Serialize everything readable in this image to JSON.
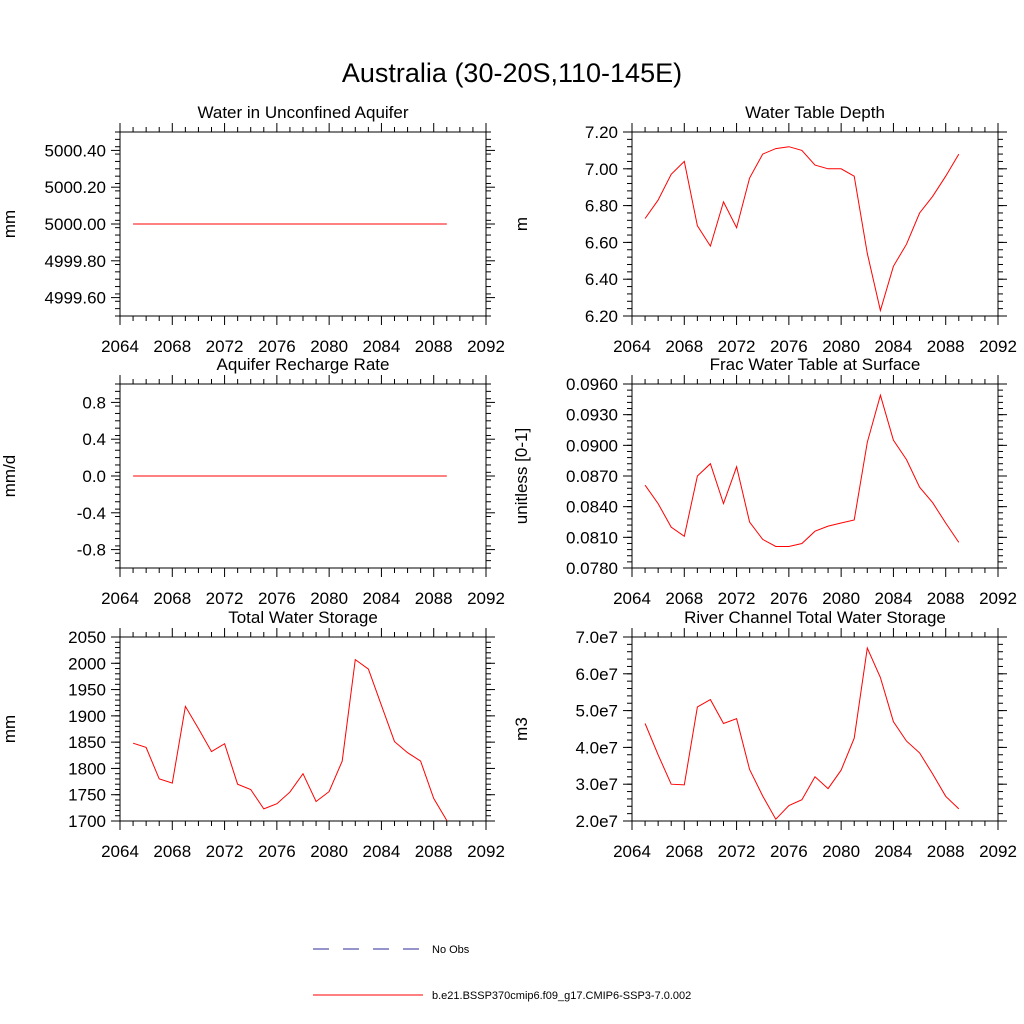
{
  "figure": {
    "title": "Australia (30-20S,110-145E)"
  },
  "legend": {
    "placement": "bottom-center",
    "entries": [
      {
        "label": "No Obs",
        "style": "dashed",
        "color": "#2b2b9a"
      },
      {
        "label": "b.e21.BSSP370cmip6.f09_g17.CMIP6-SSP3-7.0.002",
        "style": "solid",
        "color": "#ff0000"
      }
    ]
  },
  "chart_data": [
    {
      "type": "line",
      "title": "Water in Unconfined Aquifer",
      "ylabel": "mm",
      "xlim": [
        2064,
        2092
      ],
      "xticks": [
        "2064",
        "2068",
        "2072",
        "2076",
        "2080",
        "2084",
        "2088",
        "2092"
      ],
      "ylim": [
        4999.5,
        5000.5
      ],
      "yticks": [
        "4999.60",
        "4999.80",
        "5000.00",
        "5000.20",
        "5000.40"
      ],
      "series": [
        {
          "color": "#ff0000",
          "x": [
            2065,
            2066,
            2067,
            2068,
            2069,
            2070,
            2071,
            2072,
            2073,
            2074,
            2075,
            2076,
            2077,
            2078,
            2079,
            2080,
            2081,
            2082,
            2083,
            2084,
            2085,
            2086,
            2087,
            2088,
            2089
          ],
          "y": [
            5000,
            5000,
            5000,
            5000,
            5000,
            5000,
            5000,
            5000,
            5000,
            5000,
            5000,
            5000,
            5000,
            5000,
            5000,
            5000,
            5000,
            5000,
            5000,
            5000,
            5000,
            5000,
            5000,
            5000,
            5000
          ]
        }
      ]
    },
    {
      "type": "line",
      "title": "Water Table Depth",
      "ylabel": "m",
      "xlim": [
        2064,
        2092
      ],
      "xticks": [
        "2064",
        "2068",
        "2072",
        "2076",
        "2080",
        "2084",
        "2088",
        "2092"
      ],
      "ylim": [
        6.2,
        7.2
      ],
      "yticks": [
        "6.20",
        "6.40",
        "6.60",
        "6.80",
        "7.00",
        "7.20"
      ],
      "series": [
        {
          "color": "#ff0000",
          "x": [
            2065,
            2066,
            2067,
            2068,
            2069,
            2070,
            2071,
            2072,
            2073,
            2074,
            2075,
            2076,
            2077,
            2078,
            2079,
            2080,
            2081,
            2082,
            2083,
            2084,
            2085,
            2086,
            2087,
            2088,
            2089
          ],
          "y": [
            6.73,
            6.83,
            6.97,
            7.04,
            6.69,
            6.58,
            6.82,
            6.68,
            6.95,
            7.08,
            7.11,
            7.12,
            7.1,
            7.02,
            7.0,
            7.0,
            6.96,
            6.54,
            6.23,
            6.47,
            6.59,
            6.76,
            6.85,
            6.96,
            7.08
          ]
        }
      ]
    },
    {
      "type": "line",
      "title": "Aquifer Recharge Rate",
      "ylabel": "mm/d",
      "xlim": [
        2064,
        2092
      ],
      "xticks": [
        "2064",
        "2068",
        "2072",
        "2076",
        "2080",
        "2084",
        "2088",
        "2092"
      ],
      "ylim": [
        -1.0,
        1.0
      ],
      "yticks": [
        "-0.8",
        "-0.4",
        "0.0",
        "0.4",
        "0.8"
      ],
      "series": [
        {
          "color": "#ff0000",
          "x": [
            2065,
            2066,
            2067,
            2068,
            2069,
            2070,
            2071,
            2072,
            2073,
            2074,
            2075,
            2076,
            2077,
            2078,
            2079,
            2080,
            2081,
            2082,
            2083,
            2084,
            2085,
            2086,
            2087,
            2088,
            2089
          ],
          "y": [
            0,
            0,
            0,
            0,
            0,
            0,
            0,
            0,
            0,
            0,
            0,
            0,
            0,
            0,
            0,
            0,
            0,
            0,
            0,
            0,
            0,
            0,
            0,
            0,
            0
          ]
        }
      ]
    },
    {
      "type": "line",
      "title": "Frac Water Table at Surface",
      "ylabel": "unitless [0-1]",
      "xlim": [
        2064,
        2092
      ],
      "xticks": [
        "2064",
        "2068",
        "2072",
        "2076",
        "2080",
        "2084",
        "2088",
        "2092"
      ],
      "ylim": [
        0.078,
        0.096
      ],
      "yticks": [
        "0.0780",
        "0.0810",
        "0.0840",
        "0.0870",
        "0.0900",
        "0.0930",
        "0.0960"
      ],
      "series": [
        {
          "color": "#ff0000",
          "x": [
            2065,
            2066,
            2067,
            2068,
            2069,
            2070,
            2071,
            2072,
            2073,
            2074,
            2075,
            2076,
            2077,
            2078,
            2079,
            2080,
            2081,
            2082,
            2083,
            2084,
            2085,
            2086,
            2087,
            2088,
            2089
          ],
          "y": [
            0.0861,
            0.0843,
            0.082,
            0.0811,
            0.087,
            0.0882,
            0.0843,
            0.0879,
            0.0825,
            0.0808,
            0.0801,
            0.0801,
            0.0804,
            0.0816,
            0.0821,
            0.0824,
            0.0827,
            0.0903,
            0.0949,
            0.0905,
            0.0886,
            0.0859,
            0.0844,
            0.0824,
            0.0805
          ]
        }
      ]
    },
    {
      "type": "line",
      "title": "Total Water Storage",
      "ylabel": "mm",
      "xlim": [
        2064,
        2092
      ],
      "xticks": [
        "2064",
        "2068",
        "2072",
        "2076",
        "2080",
        "2084",
        "2088",
        "2092"
      ],
      "ylim": [
        1700,
        2050
      ],
      "yticks": [
        "1700",
        "1750",
        "1800",
        "1850",
        "1900",
        "1950",
        "2000",
        "2050"
      ],
      "series": [
        {
          "color": "#ff0000",
          "x": [
            2065,
            2066,
            2067,
            2068,
            2069,
            2070,
            2071,
            2072,
            2073,
            2074,
            2075,
            2076,
            2077,
            2078,
            2079,
            2080,
            2081,
            2082,
            2083,
            2084,
            2085,
            2086,
            2087,
            2088,
            2089
          ],
          "y": [
            1848,
            1840,
            1780,
            1772,
            1918,
            1876,
            1832,
            1847,
            1770,
            1760,
            1723,
            1733,
            1755,
            1790,
            1737,
            1756,
            1814,
            2007,
            1989,
            1920,
            1851,
            1830,
            1814,
            1743,
            1701
          ]
        }
      ]
    },
    {
      "type": "line",
      "title": "River Channel Total Water Storage",
      "ylabel": "m3",
      "xlim": [
        2064,
        2092
      ],
      "xticks": [
        "2064",
        "2068",
        "2072",
        "2076",
        "2080",
        "2084",
        "2088",
        "2092"
      ],
      "ylim": [
        20000000,
        70000000
      ],
      "yticks": [
        "2.0e7",
        "3.0e7",
        "4.0e7",
        "5.0e7",
        "6.0e7",
        "7.0e7"
      ],
      "series": [
        {
          "color": "#ff0000",
          "x": [
            2065,
            2066,
            2067,
            2068,
            2069,
            2070,
            2071,
            2072,
            2073,
            2074,
            2075,
            2076,
            2077,
            2078,
            2079,
            2080,
            2081,
            2082,
            2083,
            2084,
            2085,
            2086,
            2087,
            2088,
            2089
          ],
          "y": [
            46500000,
            38000000,
            30000000,
            29800000,
            51000000,
            53000000,
            46500000,
            47800000,
            34000000,
            26800000,
            20500000,
            24200000,
            25800000,
            32000000,
            28800000,
            33800000,
            42500000,
            67000000,
            59000000,
            47000000,
            41700000,
            38500000,
            32800000,
            26700000,
            23300000
          ]
        }
      ]
    }
  ]
}
